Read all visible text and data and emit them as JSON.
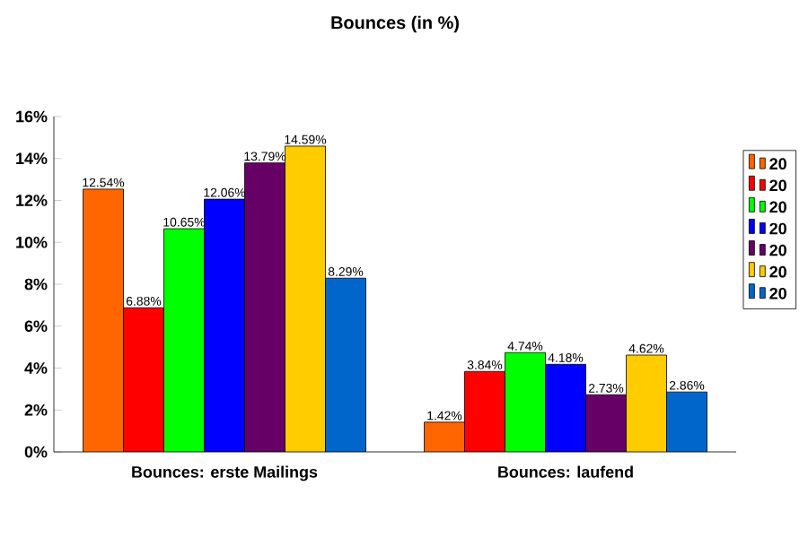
{
  "chart_data": {
    "type": "bar",
    "title": "Bounces (in %)",
    "categories": [
      "Bounces: erste Mailings",
      "Bounces: laufend"
    ],
    "series": [
      {
        "name": "20",
        "color": "#ff6600",
        "values": [
          12.54,
          1.42
        ],
        "value_labels": [
          "12.54%",
          "1.42%"
        ]
      },
      {
        "name": "20",
        "color": "#ff0000",
        "values": [
          6.88,
          3.84
        ],
        "value_labels": [
          "6.88%",
          "3.84%"
        ]
      },
      {
        "name": "20",
        "color": "#00ff00",
        "values": [
          10.65,
          4.74
        ],
        "value_labels": [
          "10.65%",
          "4.74%"
        ]
      },
      {
        "name": "20",
        "color": "#0000ff",
        "values": [
          12.06,
          4.18
        ],
        "value_labels": [
          "12.06%",
          "4.18%"
        ]
      },
      {
        "name": "20",
        "color": "#660066",
        "values": [
          13.79,
          2.73
        ],
        "value_labels": [
          "13.79%",
          "2.73%"
        ]
      },
      {
        "name": "20",
        "color": "#ffcc00",
        "values": [
          14.59,
          4.62
        ],
        "value_labels": [
          "14.59%",
          "4.62%"
        ]
      },
      {
        "name": "20",
        "color": "#0066cc",
        "values": [
          8.29,
          2.86
        ],
        "value_labels": [
          "8.29%",
          "2.86%"
        ]
      }
    ],
    "ylim": [
      0,
      16
    ],
    "yticks": [
      {
        "value": 0,
        "label": "0%"
      },
      {
        "value": 2,
        "label": "2%"
      },
      {
        "value": 4,
        "label": "4%"
      },
      {
        "value": 6,
        "label": "6%"
      },
      {
        "value": 8,
        "label": "8%"
      },
      {
        "value": 10,
        "label": "10%"
      },
      {
        "value": 12,
        "label": "12%"
      },
      {
        "value": 14,
        "label": "14%"
      },
      {
        "value": 16,
        "label": "16%"
      }
    ],
    "grid": false,
    "legend": "right"
  }
}
